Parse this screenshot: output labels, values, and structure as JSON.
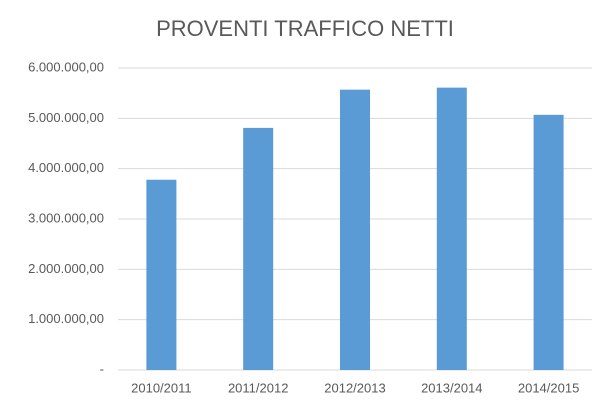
{
  "chart_data": {
    "type": "bar",
    "title": "PROVENTI TRAFFICO NETTI",
    "categories": [
      "2010/2011",
      "2011/2012",
      "2012/2013",
      "2013/2014",
      "2014/2015"
    ],
    "values": [
      3780000,
      4810000,
      5570000,
      5610000,
      5070000
    ],
    "color": "#5b9bd5",
    "ylim": [
      0,
      6000000
    ],
    "yticks": [
      {
        "value": 0,
        "label": "-"
      },
      {
        "value": 1000000,
        "label": "1.000.000,00"
      },
      {
        "value": 2000000,
        "label": "2.000.000,00"
      },
      {
        "value": 3000000,
        "label": "3.000.000,00"
      },
      {
        "value": 4000000,
        "label": "4.000.000,00"
      },
      {
        "value": 5000000,
        "label": "5.000.000,00"
      },
      {
        "value": 6000000,
        "label": "6.000.000,00"
      }
    ],
    "grid": true
  }
}
